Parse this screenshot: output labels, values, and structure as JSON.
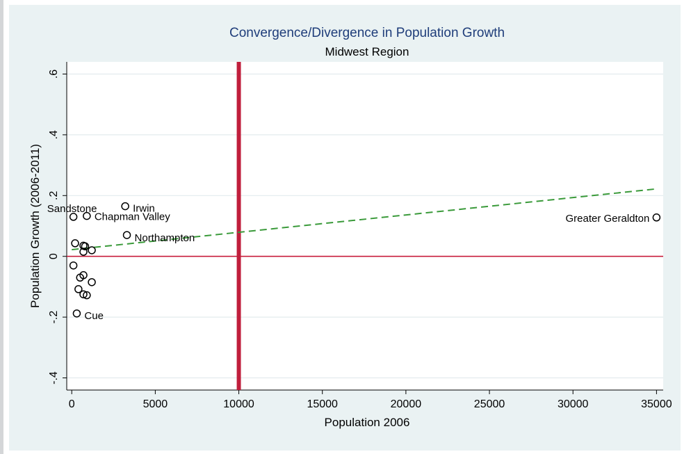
{
  "chart_data": {
    "type": "scatter",
    "title": "Convergence/Divergence in Population Growth",
    "subtitle": "Midwest Region",
    "xlabel": "Population 2006",
    "ylabel": "Population Growth (2006-2011)",
    "xlim": [
      -300,
      35400
    ],
    "ylim": [
      -0.44,
      0.64
    ],
    "xticks": [
      0,
      5000,
      10000,
      15000,
      20000,
      25000,
      30000,
      35000
    ],
    "xtick_labels": [
      "0",
      "5000",
      "10000",
      "15000",
      "20000",
      "25000",
      "30000",
      "35000"
    ],
    "yticks": [
      -0.4,
      -0.2,
      0,
      0.2,
      0.4,
      0.6
    ],
    "ytick_labels": [
      "-.4",
      "-.2",
      "0",
      ".2",
      ".4",
      ".6"
    ],
    "grid": true,
    "points": [
      {
        "x": 100,
        "y": 0.13,
        "label": "Sandstone"
      },
      {
        "x": 900,
        "y": 0.133,
        "label": "Chapman Valley"
      },
      {
        "x": 3200,
        "y": 0.165,
        "label": "Irwin"
      },
      {
        "x": 3300,
        "y": 0.07,
        "label": "Northampton"
      },
      {
        "x": 35000,
        "y": 0.128,
        "label": "Greater Geraldton"
      },
      {
        "x": 300,
        "y": -0.188,
        "label": "Cue"
      },
      {
        "x": 200,
        "y": 0.043,
        "label": ""
      },
      {
        "x": 700,
        "y": 0.035,
        "label": ""
      },
      {
        "x": 800,
        "y": 0.033,
        "label": ""
      },
      {
        "x": 700,
        "y": 0.015,
        "label": ""
      },
      {
        "x": 1200,
        "y": 0.02,
        "label": ""
      },
      {
        "x": 100,
        "y": -0.03,
        "label": ""
      },
      {
        "x": 500,
        "y": -0.07,
        "label": ""
      },
      {
        "x": 700,
        "y": -0.062,
        "label": ""
      },
      {
        "x": 1200,
        "y": -0.085,
        "label": ""
      },
      {
        "x": 400,
        "y": -0.108,
        "label": ""
      },
      {
        "x": 700,
        "y": -0.125,
        "label": ""
      },
      {
        "x": 900,
        "y": -0.128,
        "label": ""
      }
    ],
    "reference_lines": {
      "vertical_x": 10000,
      "horizontal_y": 0
    },
    "fit_line": {
      "x": [
        0,
        35000
      ],
      "y": [
        0.022,
        0.222
      ],
      "style": "dashed"
    },
    "colors": {
      "title": "#1f3d7a",
      "text": "#000000",
      "plot_bg": "#ffffff",
      "grid": "#e3ebee",
      "markers": "#000000",
      "vertical_line": "#c01e3c",
      "horizontal_line": "#c81e3c",
      "fit_line": "#3a9a3a"
    }
  }
}
